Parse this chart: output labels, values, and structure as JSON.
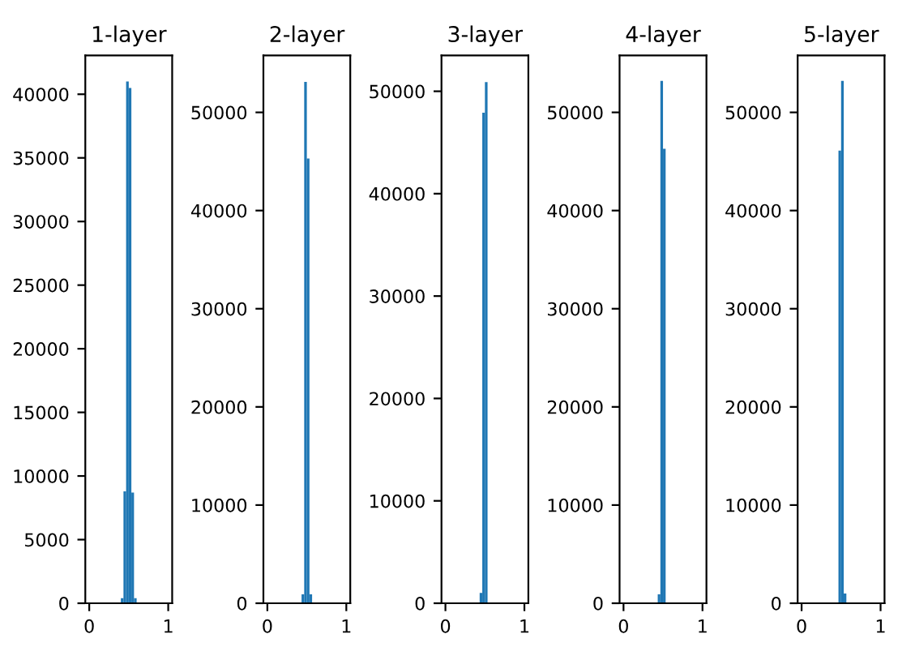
{
  "chart_data": [
    {
      "type": "histogram",
      "title": "1-layer",
      "bins": [
        0.4,
        0.4333,
        0.4667,
        0.5,
        0.5333,
        0.5667,
        0.6
      ],
      "values": [
        400,
        8800,
        41000,
        40500,
        8700,
        400
      ],
      "color": "#1f77b4",
      "xlim": [
        -0.05,
        1.05
      ],
      "xticks": [
        0,
        1
      ],
      "ylim": [
        0,
        43050
      ],
      "yticks": [
        0,
        5000,
        10000,
        15000,
        20000,
        25000,
        30000,
        35000,
        40000
      ],
      "grid": false,
      "legend": false
    },
    {
      "type": "histogram",
      "title": "2-layer",
      "bins": [
        0.4,
        0.4333,
        0.4667,
        0.5,
        0.5333,
        0.5667,
        0.6
      ],
      "values": [
        0,
        900,
        53100,
        45300,
        900,
        0
      ],
      "color": "#1f77b4",
      "xlim": [
        -0.05,
        1.05
      ],
      "xticks": [
        0,
        1
      ],
      "ylim": [
        0,
        55800
      ],
      "yticks": [
        0,
        10000,
        20000,
        30000,
        40000,
        50000
      ],
      "grid": false,
      "legend": false
    },
    {
      "type": "histogram",
      "title": "3-layer",
      "bins": [
        0.4,
        0.4333,
        0.4667,
        0.5,
        0.5333,
        0.5667,
        0.6
      ],
      "values": [
        0,
        1000,
        47900,
        50900,
        0,
        0
      ],
      "color": "#1f77b4",
      "xlim": [
        -0.05,
        1.05
      ],
      "xticks": [
        0,
        1
      ],
      "ylim": [
        0,
        53500
      ],
      "yticks": [
        0,
        10000,
        20000,
        30000,
        40000,
        50000
      ],
      "grid": false,
      "legend": false
    },
    {
      "type": "histogram",
      "title": "4-layer",
      "bins": [
        0.4,
        0.4333,
        0.4667,
        0.5,
        0.5333,
        0.5667,
        0.6
      ],
      "values": [
        0,
        900,
        53200,
        46300,
        0,
        0
      ],
      "color": "#1f77b4",
      "xlim": [
        -0.05,
        1.05
      ],
      "xticks": [
        0,
        1
      ],
      "ylim": [
        0,
        55800
      ],
      "yticks": [
        0,
        10000,
        20000,
        30000,
        40000,
        50000
      ],
      "grid": false,
      "legend": false
    },
    {
      "type": "histogram",
      "title": "5-layer",
      "bins": [
        0.4,
        0.4333,
        0.4667,
        0.5,
        0.5333,
        0.5667,
        0.6
      ],
      "values": [
        0,
        0,
        46100,
        53200,
        1000,
        0
      ],
      "color": "#1f77b4",
      "xlim": [
        -0.05,
        1.05
      ],
      "xticks": [
        0,
        1
      ],
      "ylim": [
        0,
        55800
      ],
      "yticks": [
        0,
        10000,
        20000,
        30000,
        40000,
        50000
      ],
      "grid": false,
      "legend": false
    }
  ]
}
